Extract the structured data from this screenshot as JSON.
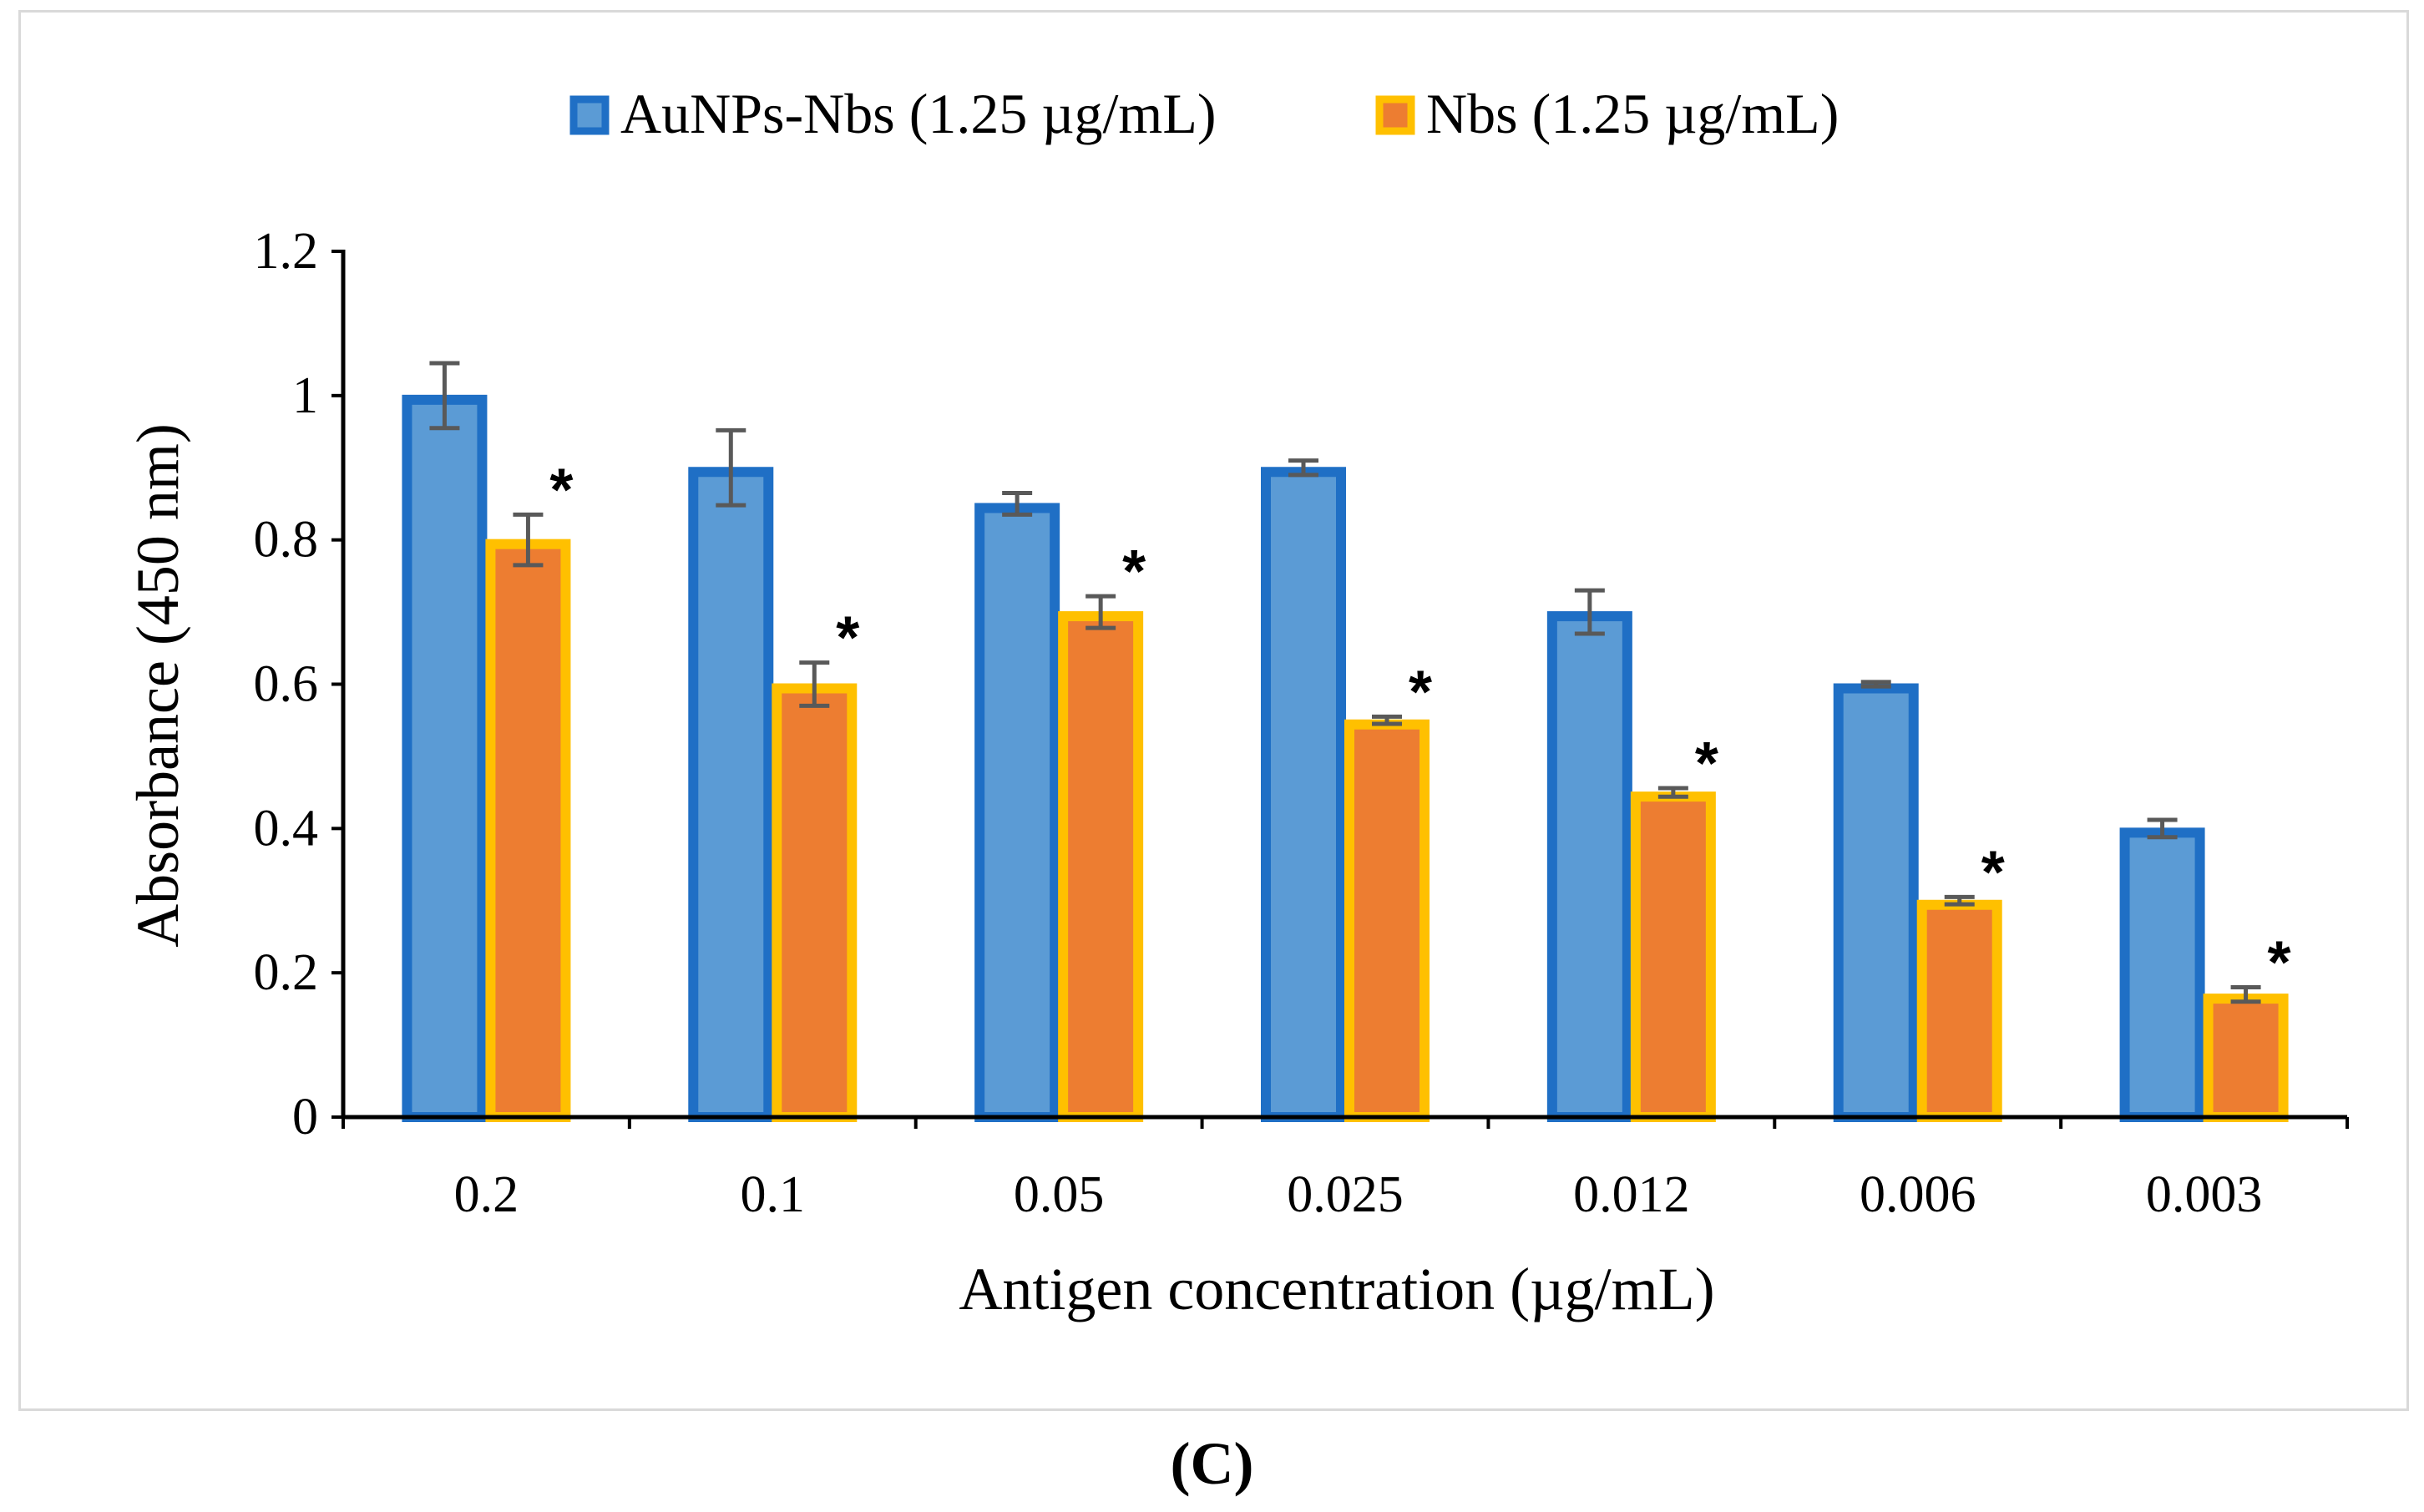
{
  "chart_data": {
    "type": "bar",
    "title": "",
    "xlabel": "Antigen concentration (µg/mL)",
    "ylabel": "Absorbance (450 nm)",
    "ylim": [
      0,
      1.2
    ],
    "yticks": [
      "0",
      "0.2",
      "0.4",
      "0.6",
      "0.8",
      "1",
      "1.2"
    ],
    "categories": [
      "0.2",
      "0.1",
      "0.05",
      "0.025",
      "0.012",
      "0.006",
      "0.003"
    ],
    "series": [
      {
        "name": "AuNPs-Nbs (1.25 µg/mL)",
        "fill": "#5b9bd5",
        "edge": "#1f6fc5",
        "values": [
          1.0,
          0.9,
          0.85,
          0.9,
          0.7,
          0.6,
          0.4
        ],
        "errors": [
          0.045,
          0.052,
          0.015,
          0.01,
          0.03,
          0.003,
          0.012
        ]
      },
      {
        "name": "Nbs (1.25 µg/mL)",
        "fill": "#ed7d31",
        "edge": "#ffc000",
        "values": [
          0.8,
          0.6,
          0.7,
          0.55,
          0.45,
          0.3,
          0.17
        ],
        "errors": [
          0.035,
          0.03,
          0.022,
          0.005,
          0.006,
          0.005,
          0.01
        ]
      }
    ],
    "significance_marker": "*",
    "legend_position": "top-center",
    "grid": false
  },
  "panel_label": "(C)"
}
